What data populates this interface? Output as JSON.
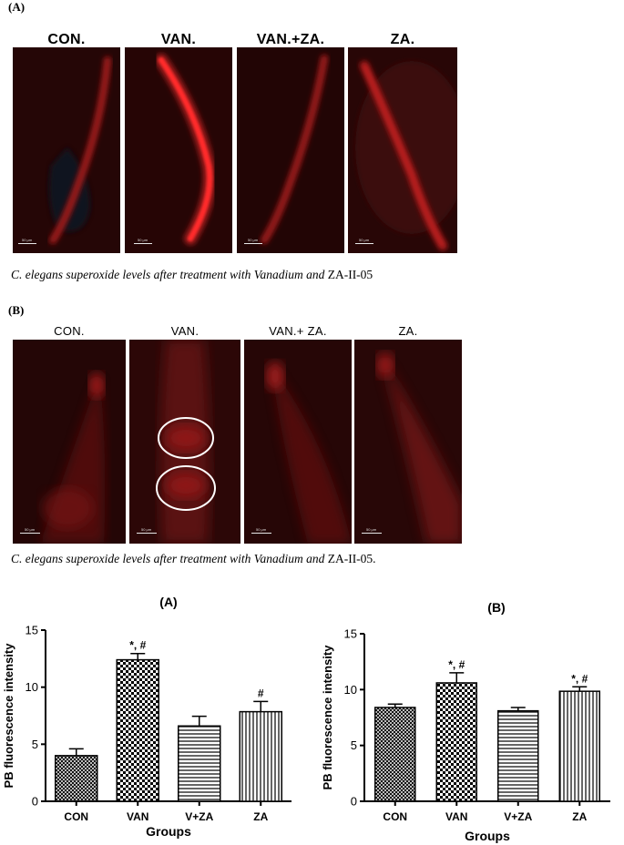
{
  "figure_top": {
    "panel_a_tag": "(A)",
    "panel_b_tag": "(B)",
    "row_a_labels": [
      "CON.",
      "VAN.",
      "VAN.+ZA.",
      "ZA."
    ],
    "row_b_labels": [
      "CON.",
      "VAN.",
      "VAN.+ ZA.",
      "ZA."
    ],
    "scale_bar_label": "50 μm",
    "caption_a": {
      "part1": "C. elegans superoxide levels after treatment with Vanadium and",
      "part2": " ZA-II-05"
    },
    "caption_b": {
      "part1": "C. elegans superoxide levels after treatment with Vanadium and",
      "part2": " ZA-II-05."
    }
  },
  "chart_data": [
    {
      "type": "bar",
      "title": "(A)",
      "xlabel": "Groups",
      "ylabel": "PB fluorescence intensity",
      "categories": [
        "CON",
        "VAN",
        "V+ZA",
        "ZA"
      ],
      "values": [
        4.0,
        12.4,
        6.6,
        7.85
      ],
      "errors": [
        0.6,
        0.55,
        0.85,
        0.9
      ],
      "annotations": [
        "",
        "*, #",
        "",
        "#"
      ],
      "patterns": [
        "crosshatch",
        "checker",
        "horizontal",
        "vertical"
      ],
      "ylim": [
        0,
        15
      ],
      "yticks": [
        0,
        5,
        10,
        15
      ]
    },
    {
      "type": "bar",
      "title": "(B)",
      "xlabel": "Groups",
      "ylabel": "PB fluorescence intensity",
      "categories": [
        "CON",
        "VAN",
        "V+ZA",
        "ZA"
      ],
      "values": [
        8.4,
        10.6,
        8.1,
        9.85
      ],
      "errors": [
        0.3,
        0.9,
        0.3,
        0.4
      ],
      "annotations": [
        "",
        "*, #",
        "",
        "*, #"
      ],
      "patterns": [
        "crosshatch",
        "checker",
        "horizontal",
        "vertical"
      ],
      "ylim": [
        0,
        15
      ],
      "yticks": [
        0,
        5,
        10,
        15
      ]
    }
  ]
}
